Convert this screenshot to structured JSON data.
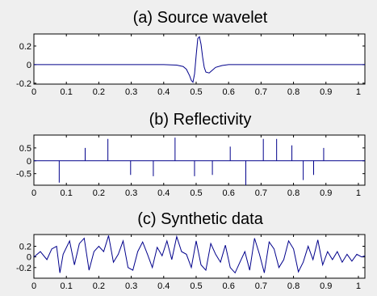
{
  "chart_data": [
    {
      "type": "line",
      "title": "(a) Source wavelet",
      "xlabel": "",
      "ylabel": "",
      "xlim": [
        0,
        1.02
      ],
      "ylim": [
        -0.21,
        0.33
      ],
      "xticks": [
        "0",
        "0.1",
        "0.2",
        "0.3",
        "0.4",
        "0.5",
        "0.6",
        "0.7",
        "0.8",
        "0.9",
        "1"
      ],
      "yticks": [
        "0.2",
        "0",
        "-0.2"
      ],
      "grid": false,
      "series": [
        {
          "color": "#00008b",
          "x": [
            0,
            0.4,
            0.44,
            0.46,
            0.47,
            0.48,
            0.485,
            0.49,
            0.495,
            0.5,
            0.505,
            0.51,
            0.515,
            0.52,
            0.525,
            0.53,
            0.54,
            0.55,
            0.56,
            0.58,
            0.6,
            1.02
          ],
          "y": [
            0,
            0,
            -0.005,
            -0.02,
            -0.05,
            -0.12,
            -0.17,
            -0.19,
            -0.1,
            0.1,
            0.28,
            0.3,
            0.22,
            0.08,
            -0.03,
            -0.08,
            -0.09,
            -0.06,
            -0.03,
            -0.01,
            0,
            0
          ]
        }
      ]
    },
    {
      "type": "line",
      "title": "(b) Reflectivity",
      "xlabel": "",
      "ylabel": "",
      "xlim": [
        0,
        1.02
      ],
      "ylim": [
        -0.95,
        1.0
      ],
      "xticks": [
        "0",
        "0.1",
        "0.2",
        "0.3",
        "0.4",
        "0.5",
        "0.6",
        "0.7",
        "0.8",
        "0.9",
        "1"
      ],
      "yticks": [
        "0.5",
        "0",
        "-0.5"
      ],
      "grid": false,
      "spikes": [
        {
          "x": 0.078,
          "y": -0.85
        },
        {
          "x": 0.158,
          "y": 0.5
        },
        {
          "x": 0.228,
          "y": 0.85
        },
        {
          "x": 0.298,
          "y": -0.55
        },
        {
          "x": 0.368,
          "y": -0.6
        },
        {
          "x": 0.435,
          "y": 0.9
        },
        {
          "x": 0.495,
          "y": -0.6
        },
        {
          "x": 0.55,
          "y": -0.55
        },
        {
          "x": 0.605,
          "y": 0.55
        },
        {
          "x": 0.653,
          "y": -0.95
        },
        {
          "x": 0.707,
          "y": 0.85
        },
        {
          "x": 0.748,
          "y": 0.85
        },
        {
          "x": 0.795,
          "y": 0.6
        },
        {
          "x": 0.83,
          "y": -0.75
        },
        {
          "x": 0.862,
          "y": -0.55
        },
        {
          "x": 0.893,
          "y": 0.5
        }
      ]
    },
    {
      "type": "line",
      "title": "(c) Synthetic data",
      "xlabel": "",
      "ylabel": "",
      "xlim": [
        0,
        1.02
      ],
      "ylim": [
        -0.4,
        0.42
      ],
      "xticks": [
        "0",
        "0.1",
        "0.2",
        "0.3",
        "0.4",
        "0.5",
        "0.6",
        "0.7",
        "0.8",
        "0.9",
        "1"
      ],
      "yticks": [
        "0.2",
        "0",
        "-0.2"
      ],
      "grid": false,
      "series": [
        {
          "color": "#00008b",
          "x": [
            0,
            0.02,
            0.04,
            0.055,
            0.07,
            0.08,
            0.09,
            0.11,
            0.125,
            0.14,
            0.155,
            0.17,
            0.185,
            0.2,
            0.215,
            0.23,
            0.245,
            0.26,
            0.275,
            0.29,
            0.305,
            0.32,
            0.335,
            0.35,
            0.365,
            0.38,
            0.395,
            0.41,
            0.425,
            0.44,
            0.455,
            0.47,
            0.485,
            0.5,
            0.515,
            0.53,
            0.545,
            0.56,
            0.575,
            0.59,
            0.605,
            0.62,
            0.635,
            0.65,
            0.665,
            0.68,
            0.695,
            0.71,
            0.725,
            0.74,
            0.755,
            0.77,
            0.785,
            0.8,
            0.815,
            0.83,
            0.845,
            0.86,
            0.875,
            0.89,
            0.905,
            0.92,
            0.935,
            0.95,
            0.965,
            0.98,
            0.995,
            1.01,
            1.02
          ],
          "y": [
            0,
            0.1,
            -0.05,
            0.15,
            0.2,
            -0.3,
            0.05,
            0.3,
            -0.15,
            0.25,
            0.35,
            -0.25,
            0.1,
            0.2,
            0.1,
            0.4,
            -0.1,
            0.05,
            0.3,
            -0.2,
            -0.25,
            0.1,
            0.28,
            0.05,
            -0.2,
            0.18,
            0.02,
            0.3,
            -0.05,
            0.38,
            0.1,
            0.05,
            -0.2,
            0.3,
            -0.15,
            -0.25,
            0.25,
            0.05,
            -0.1,
            0.22,
            -0.2,
            -0.3,
            -0.1,
            0.1,
            -0.25,
            0.35,
            0.05,
            -0.3,
            0.28,
            0.15,
            -0.2,
            -0.05,
            0.3,
            0.15,
            -0.28,
            -0.1,
            0.2,
            -0.05,
            0.32,
            -0.15,
            0.1,
            -0.05,
            0.1,
            -0.1,
            0.05,
            -0.08,
            0.05,
            0,
            0.02
          ]
        }
      ]
    }
  ]
}
